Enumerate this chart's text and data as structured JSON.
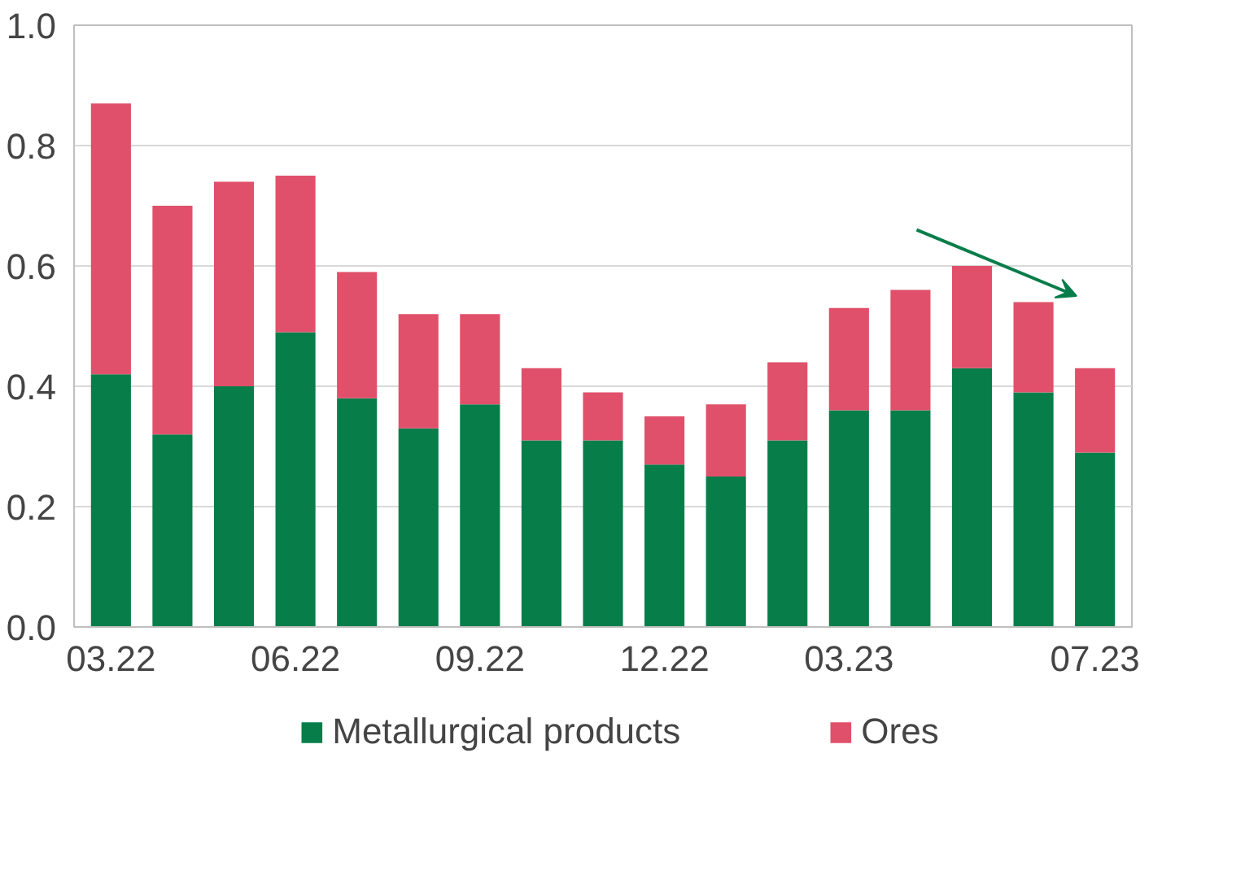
{
  "chart_data": {
    "type": "bar",
    "stacked": true,
    "categories": [
      "03.22",
      null,
      null,
      "06.22",
      null,
      null,
      "09.22",
      null,
      null,
      "12.22",
      null,
      null,
      "03.23",
      null,
      null,
      null,
      "07.23"
    ],
    "series": [
      {
        "name": "Metallurgical products",
        "color": "#077d4a",
        "values": [
          0.42,
          0.32,
          0.4,
          0.49,
          0.38,
          0.33,
          0.37,
          0.31,
          0.31,
          0.27,
          0.25,
          0.31,
          0.36,
          0.36,
          0.43,
          0.39,
          0.29
        ]
      },
      {
        "name": "Ores",
        "color": "#e0506a",
        "values": [
          0.45,
          0.38,
          0.34,
          0.26,
          0.21,
          0.19,
          0.15,
          0.12,
          0.08,
          0.08,
          0.12,
          0.13,
          0.17,
          0.2,
          0.17,
          0.15,
          0.14
        ]
      }
    ],
    "ylim": [
      0,
      1.0
    ],
    "yticks": [
      {
        "value": 0,
        "label": "0.0"
      },
      {
        "value": 0.2,
        "label": "0.2"
      },
      {
        "value": 0.4,
        "label": "0.4"
      },
      {
        "value": 0.6,
        "label": "0.6"
      },
      {
        "value": 0.8,
        "label": "0.8"
      },
      {
        "value": 1.0,
        "label": "1.0"
      }
    ],
    "grid": "y",
    "legend": "bottom"
  }
}
